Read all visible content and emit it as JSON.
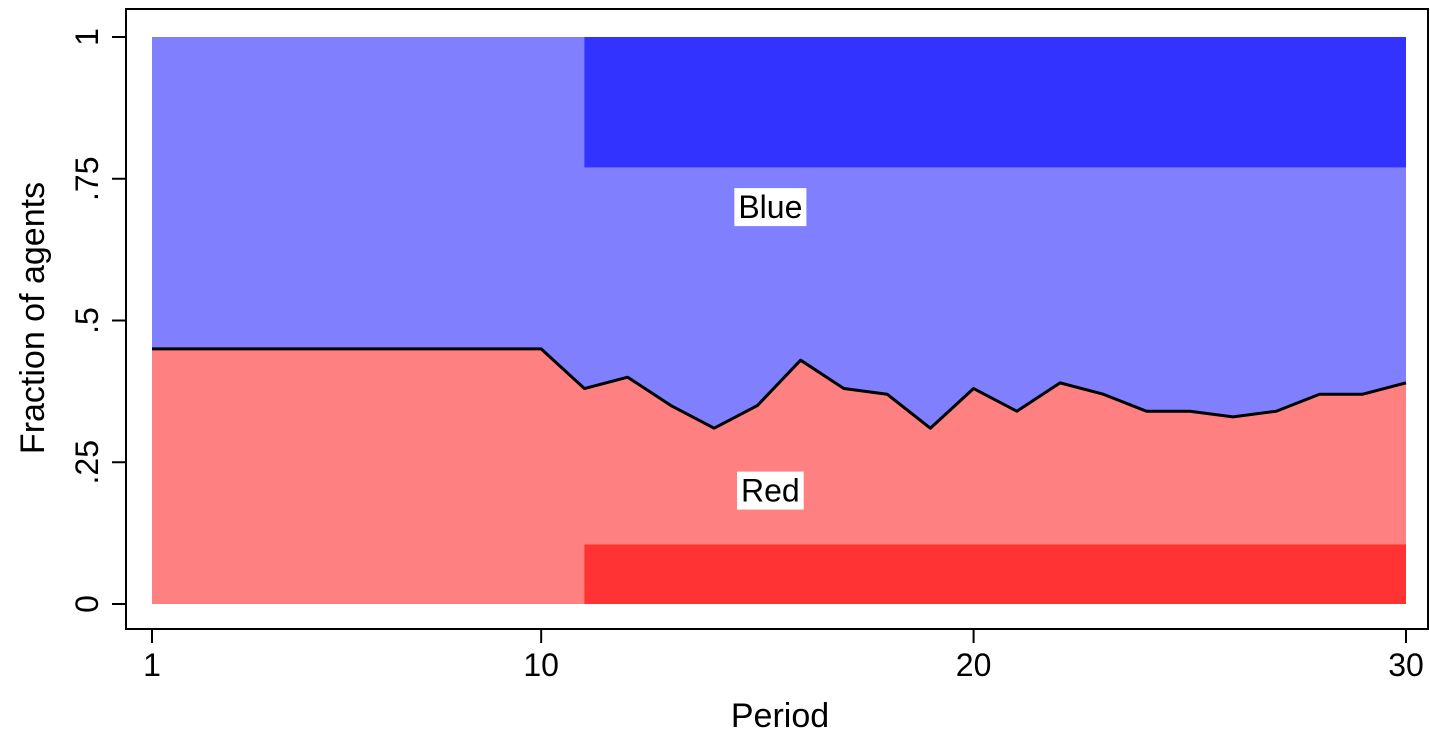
{
  "chart_data": {
    "type": "area",
    "xlabel": "Period",
    "ylabel": "Fraction of agents",
    "xlim": [
      1,
      30
    ],
    "ylim": [
      0,
      1
    ],
    "x_ticks": [
      {
        "value": 1,
        "label": "1"
      },
      {
        "value": 10,
        "label": "10"
      },
      {
        "value": 20,
        "label": "20"
      },
      {
        "value": 30,
        "label": "30"
      }
    ],
    "y_ticks": [
      {
        "value": 0,
        "label": "0"
      },
      {
        "value": 0.25,
        "label": ".25"
      },
      {
        "value": 0.5,
        "label": ".5"
      },
      {
        "value": 0.75,
        "label": ".75"
      },
      {
        "value": 1,
        "label": "1"
      }
    ],
    "x": [
      1,
      2,
      3,
      4,
      5,
      6,
      7,
      8,
      9,
      10,
      11,
      12,
      13,
      14,
      15,
      16,
      17,
      18,
      19,
      20,
      21,
      22,
      23,
      24,
      25,
      26,
      27,
      28,
      29,
      30
    ],
    "series": [
      {
        "name": "Red",
        "color": "#ff8080",
        "values": [
          0.45,
          0.45,
          0.45,
          0.45,
          0.45,
          0.45,
          0.45,
          0.45,
          0.45,
          0.45,
          0.38,
          0.4,
          0.35,
          0.31,
          0.35,
          0.43,
          0.38,
          0.37,
          0.31,
          0.38,
          0.34,
          0.39,
          0.37,
          0.34,
          0.34,
          0.33,
          0.34,
          0.37,
          0.37,
          0.39
        ]
      },
      {
        "name": "Blue",
        "color": "#8080ff",
        "values": [
          0.55,
          0.55,
          0.55,
          0.55,
          0.55,
          0.55,
          0.55,
          0.55,
          0.55,
          0.55,
          0.62,
          0.6,
          0.65,
          0.69,
          0.65,
          0.57,
          0.62,
          0.63,
          0.69,
          0.62,
          0.66,
          0.61,
          0.63,
          0.66,
          0.66,
          0.67,
          0.66,
          0.63,
          0.63,
          0.61
        ]
      }
    ],
    "bands": [
      {
        "series": "Blue",
        "x_from": 11,
        "x_to": 30,
        "y_from": 0.77,
        "y_to": 1.0,
        "color": "#3333ff"
      },
      {
        "series": "Red",
        "x_from": 11,
        "x_to": 30,
        "y_from": 0.0,
        "y_to": 0.105,
        "color": "#ff3333"
      }
    ],
    "labels": [
      {
        "text": "Blue",
        "x": 15.3,
        "y": 0.7
      },
      {
        "text": "Red",
        "x": 15.3,
        "y": 0.2
      }
    ],
    "boundary_color": "#000000",
    "grid": false
  }
}
